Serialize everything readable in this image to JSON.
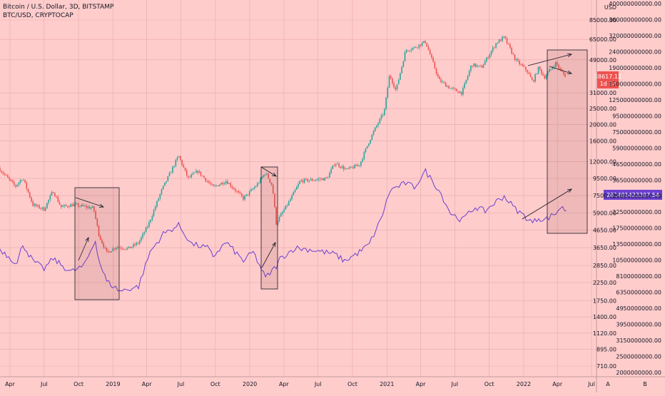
{
  "header": {
    "title": "Bitcoin / U.S. Dollar, 3D, BITSTAMP",
    "subtitle": "BTC/USD, CRYPTOCAP"
  },
  "axes": {
    "price_unit": "USD",
    "x_ticks": [
      "Apr",
      "Jul",
      "Oct",
      "2019",
      "Apr",
      "Jul",
      "Oct",
      "2020",
      "Apr",
      "Jul",
      "Oct",
      "2021",
      "Apr",
      "Jul",
      "Oct",
      "2022",
      "Apr",
      "Jul"
    ],
    "x_extra_ticks": [
      "A",
      "B"
    ],
    "price_ticks": [
      "85000.00",
      "65000.00",
      "49000.00",
      "31000.00",
      "25000.00",
      "20000.00",
      "16000.00",
      "12000.00",
      "9500.00",
      "7500.00",
      "5900.00",
      "4650.00",
      "3650.00",
      "2850.00",
      "2250.00",
      "1750.00",
      "1400.00",
      "1120.00",
      "895.00",
      "710.00"
    ],
    "cap_ticks": [
      "400000000000.00",
      "360000000000.00",
      "320000000000.00",
      "240000000000.00",
      "190000000000.00",
      "150000000000.00",
      "125000000000.00",
      "95000000000.00",
      "75000000000.00",
      "59000000000.00",
      "46500000000.00",
      "36500000000.00",
      "29000000000.00",
      "22500000000.00",
      "17500000000.00",
      "13500000000.00",
      "10500000000.00",
      "8100000000.00",
      "6350000000.00",
      "4950000000.00",
      "3950000000.00",
      "3150000000.00",
      "2500000000.00",
      "2000000000.00"
    ]
  },
  "labels": {
    "last_price": "38617.12",
    "countdown": "1d 1h",
    "last_cap": "281491423397.54"
  },
  "colors": {
    "background": "#ffcccc",
    "up": "#26a69a",
    "down": "#ef5350",
    "cap_line": "#6a3fd0",
    "price_label": "#ef5350",
    "cap_label": "#6a3fd0"
  },
  "chart_data": {
    "type": "line",
    "series": [
      {
        "name": "BTC/USD",
        "dates": [
          "2018-03-01",
          "2018-04-15",
          "2018-05-05",
          "2018-06-01",
          "2018-07-01",
          "2018-07-25",
          "2018-08-15",
          "2018-09-15",
          "2018-10-15",
          "2018-11-10",
          "2018-11-25",
          "2018-12-15",
          "2019-01-10",
          "2019-02-10",
          "2019-03-10",
          "2019-04-05",
          "2019-05-10",
          "2019-06-25",
          "2019-07-20",
          "2019-08-15",
          "2019-09-25",
          "2019-10-30",
          "2019-12-15",
          "2020-01-20",
          "2020-02-12",
          "2020-03-01",
          "2020-03-12",
          "2020-03-15",
          "2020-04-15",
          "2020-05-15",
          "2020-06-15",
          "2020-07-25",
          "2020-08-15",
          "2020-09-15",
          "2020-10-20",
          "2020-11-15",
          "2020-12-01",
          "2020-12-25",
          "2021-01-08",
          "2021-01-25",
          "2021-02-20",
          "2021-03-15",
          "2021-04-14",
          "2021-05-20",
          "2021-06-20",
          "2021-07-20",
          "2021-08-15",
          "2021-09-10",
          "2021-10-20",
          "2021-11-10",
          "2021-12-10",
          "2022-01-10",
          "2022-01-25",
          "2022-02-10",
          "2022-02-25",
          "2022-03-28",
          "2022-04-10",
          "2022-04-25"
        ],
        "values": [
          11000,
          8500,
          9600,
          6600,
          6200,
          8000,
          6400,
          6600,
          6450,
          6300,
          4300,
          3400,
          3700,
          3600,
          3900,
          5000,
          8000,
          13000,
          9500,
          10500,
          8400,
          9200,
          7200,
          8700,
          10300,
          8600,
          5000,
          5300,
          6900,
          9200,
          9300,
          9500,
          11800,
          10700,
          11500,
          16000,
          19000,
          24000,
          40000,
          32000,
          56000,
          58000,
          63000,
          37000,
          33000,
          31000,
          46000,
          44000,
          62000,
          67000,
          49000,
          42000,
          36000,
          44000,
          38500,
          47000,
          42000,
          38617
        ]
      },
      {
        "name": "CRYPTOCAP",
        "dates": [
          "2018-03-01",
          "2018-04-20",
          "2018-05-05",
          "2018-06-01",
          "2018-07-01",
          "2018-07-25",
          "2018-08-20",
          "2018-09-10",
          "2018-10-15",
          "2018-11-15",
          "2018-11-25",
          "2018-12-15",
          "2019-01-20",
          "2019-03-10",
          "2019-04-10",
          "2019-05-15",
          "2019-06-25",
          "2019-07-30",
          "2019-09-10",
          "2019-09-25",
          "2019-10-30",
          "2019-12-15",
          "2020-01-10",
          "2020-02-12",
          "2020-03-12",
          "2020-03-22",
          "2020-05-01",
          "2020-06-15",
          "2020-08-15",
          "2020-09-10",
          "2020-10-20",
          "2020-11-15",
          "2020-12-15",
          "2021-01-10",
          "2021-02-20",
          "2021-03-15",
          "2021-04-14",
          "2021-05-20",
          "2021-06-20",
          "2021-07-20",
          "2021-08-25",
          "2021-09-20",
          "2021-10-20",
          "2021-11-10",
          "2021-12-10",
          "2022-01-25",
          "2022-02-10",
          "2022-02-25",
          "2022-03-28",
          "2022-04-10",
          "2022-04-25"
        ],
        "values": [
          150000000000,
          115000000000,
          160000000000,
          120000000000,
          105000000000,
          125000000000,
          110000000000,
          100000000000,
          110000000000,
          170000000000,
          120000000000,
          85000000000,
          72000000000,
          78000000000,
          140000000000,
          190000000000,
          220000000000,
          160000000000,
          150000000000,
          130000000000,
          165000000000,
          120000000000,
          140000000000,
          90000000000,
          110000000000,
          125000000000,
          150000000000,
          145000000000,
          135000000000,
          120000000000,
          140000000000,
          160000000000,
          240000000000,
          400000000000,
          450000000000,
          420000000000,
          550000000000,
          400000000000,
          270000000000,
          240000000000,
          300000000000,
          280000000000,
          330000000000,
          360000000000,
          290000000000,
          230000000000,
          250000000000,
          240000000000,
          270000000000,
          300000000000,
          281491423397
        ]
      }
    ],
    "y_scale": "log",
    "title": "Bitcoin / U.S. Dollar, 3D, BITSTAMP",
    "xlabel": "",
    "ylabel": "USD"
  }
}
